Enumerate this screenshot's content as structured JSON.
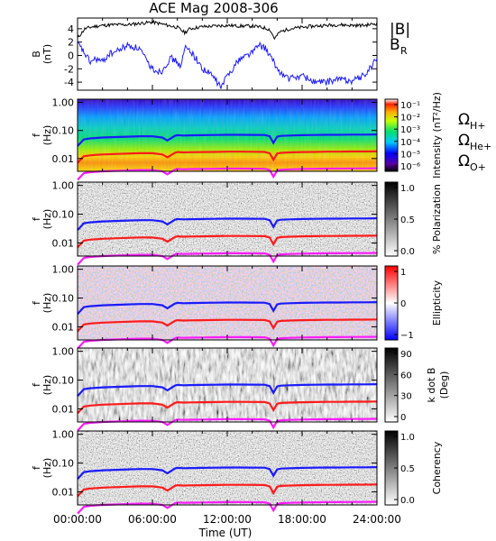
{
  "title": "ACE Mag 2008-306",
  "chart_data": [
    {
      "type": "line",
      "panel": "B",
      "ylabel_line1": "B",
      "ylabel_line2": "(nT)",
      "ylim": [
        -5.2,
        5.6
      ],
      "yticks": [
        4,
        2,
        0,
        -2,
        -4
      ],
      "xlim_hours": [
        0,
        24
      ],
      "legend": [
        {
          "text": "|B|",
          "color": "#000000"
        },
        {
          "text": "B",
          "sub": "R",
          "color": "#1a1aff"
        }
      ],
      "series": [
        {
          "name": "|B|",
          "color": "#000000",
          "x": [
            0,
            0.6,
            1.2,
            2,
            3,
            4,
            5,
            6,
            7,
            8,
            8.6,
            9,
            10,
            11,
            12,
            13,
            14,
            14.8,
            15.4,
            15.8,
            16.2,
            17,
            18,
            19,
            20,
            21,
            22,
            23,
            24
          ],
          "values": [
            2.6,
            4.0,
            4.3,
            4.5,
            4.6,
            4.6,
            4.8,
            5.0,
            4.6,
            4.2,
            3.4,
            4.0,
            4.3,
            4.4,
            4.5,
            4.4,
            4.4,
            4.2,
            3.9,
            2.5,
            3.5,
            4.0,
            4.2,
            4.4,
            4.5,
            4.6,
            4.5,
            4.5,
            4.8
          ]
        },
        {
          "name": "B_R",
          "color": "#1a1aff",
          "x": [
            0,
            0.5,
            1,
            1.5,
            2,
            2.5,
            3,
            4,
            5,
            5.5,
            6,
            6.7,
            7,
            7.5,
            8,
            8.3,
            8.6,
            9,
            9.5,
            10,
            10.8,
            11.5,
            12,
            13,
            14,
            14.5,
            15,
            15.5,
            16,
            16.5,
            17,
            18,
            19,
            20,
            21,
            22,
            23,
            24
          ],
          "values": [
            1.8,
            0.5,
            -1.0,
            -0.5,
            -1.0,
            0.2,
            0.5,
            1.5,
            1.0,
            -0.8,
            -2.0,
            -2.5,
            -1.5,
            -0.4,
            -1.0,
            -1.8,
            1.2,
            0.8,
            -0.5,
            -2.0,
            -3.0,
            -4.8,
            -3.0,
            -0.5,
            0.5,
            1.5,
            1.2,
            -0.3,
            -2.0,
            -3.0,
            -3.5,
            -3.0,
            -4.0,
            -4.0,
            -3.5,
            -3.8,
            -3.0,
            -0.5
          ]
        }
      ]
    },
    {
      "type": "heatmap",
      "panel": "intensity",
      "ylabel_line1": "f",
      "ylabel_line2": "(Hz)",
      "log_y": true,
      "ylim": [
        0.0035,
        1.3
      ],
      "yticks": [
        "1.00",
        "0.10",
        "0.01"
      ],
      "colorbar_label": "Intensity (nT²/Hz)",
      "colorbar_ticks": [
        "10⁻¹",
        "10⁻²",
        "10⁻³",
        "10⁻⁴",
        "10⁻⁵",
        "10⁻⁶"
      ],
      "colorscale": "rainbow",
      "legend": [
        {
          "text": "Ω",
          "sub": "H+",
          "color": "#1a1aff"
        },
        {
          "text": "Ω",
          "sub": "He+",
          "color": "#ff1a1a"
        },
        {
          "text": "Ω",
          "sub": "O+",
          "color": "#ff1aff"
        }
      ]
    },
    {
      "type": "heatmap",
      "panel": "polarization",
      "ylabel_line1": "f",
      "ylabel_line2": "(Hz)",
      "log_y": true,
      "yticks": [
        "1.00",
        "0.10",
        "0.01"
      ],
      "colorbar_label": "% Polarization",
      "colorbar_ticks": [
        "1.0",
        "0.5",
        "0.0"
      ],
      "colorscale": "gray"
    },
    {
      "type": "heatmap",
      "panel": "ellipticity",
      "ylabel_line1": "f",
      "ylabel_line2": "(Hz)",
      "log_y": true,
      "yticks": [
        "1.00",
        "0.10",
        "0.01"
      ],
      "colorbar_label": "Ellipticity",
      "colorbar_ticks": [
        "1",
        "0",
        "−1"
      ],
      "colorscale": "blue-white-red"
    },
    {
      "type": "heatmap",
      "panel": "kdotb",
      "ylabel_line1": "f",
      "ylabel_line2": "(Hz)",
      "log_y": true,
      "yticks": [
        "1.00",
        "0.10",
        "0.01"
      ],
      "colorbar_label_line1": "k dot B",
      "colorbar_label_line2": "(Deg)",
      "colorbar_ticks": [
        "90",
        "60",
        "30",
        "0"
      ],
      "colorscale": "gray"
    },
    {
      "type": "heatmap",
      "panel": "coherency",
      "ylabel_line1": "f",
      "ylabel_line2": "(Hz)",
      "log_y": true,
      "yticks": [
        "1.00",
        "0.10",
        "0.01"
      ],
      "colorbar_label": "Coherency",
      "colorbar_ticks": [
        "1.0",
        "0.5",
        "0.0"
      ],
      "colorscale": "gray"
    }
  ],
  "gyro_lines": {
    "x": [
      0,
      0.5,
      1,
      1.5,
      2,
      3,
      4,
      5,
      6,
      6.8,
      7.2,
      7.8,
      8,
      8.5,
      9,
      10,
      11,
      12,
      13,
      14,
      15,
      15.4,
      15.7,
      16,
      16.3,
      17,
      18,
      19,
      20,
      21,
      22,
      23,
      24
    ],
    "He": [
      0.007,
      0.012,
      0.013,
      0.0135,
      0.014,
      0.0145,
      0.015,
      0.0155,
      0.0155,
      0.014,
      0.011,
      0.016,
      0.017,
      0.0165,
      0.0168,
      0.017,
      0.0172,
      0.0175,
      0.0175,
      0.0174,
      0.0172,
      0.0155,
      0.009,
      0.015,
      0.016,
      0.0165,
      0.017,
      0.0172,
      0.0175,
      0.0175,
      0.0178,
      0.0178,
      0.018
    ],
    "H_factor": 4,
    "O_factor": 0.25
  },
  "xaxis": {
    "label": "Time (UT)",
    "ticks": [
      "00:00:00",
      "06:00:00",
      "12:00:00",
      "18:00:00",
      "24:00:00"
    ]
  }
}
